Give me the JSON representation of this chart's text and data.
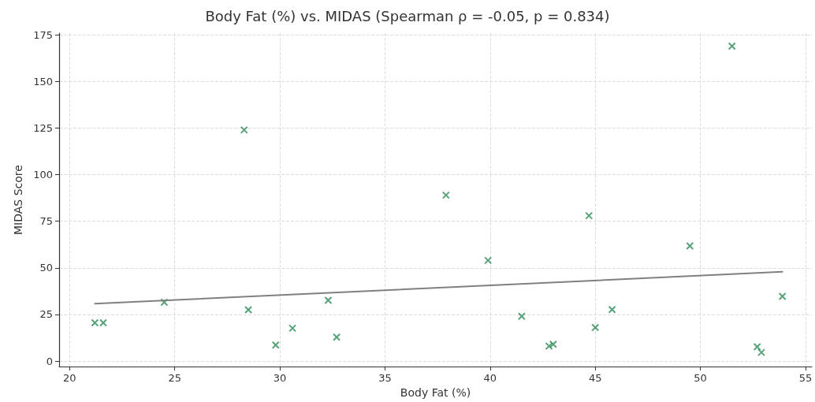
{
  "chart_data": {
    "type": "scatter",
    "title": "Body Fat (%) vs. MIDAS (Spearman ρ = -0.05, p = 0.834)",
    "xlabel": "Body Fat (%)",
    "ylabel": "MIDAS Score",
    "xlim": [
      19.5,
      55.3
    ],
    "xticks": [
      20,
      25,
      30,
      35,
      40,
      45,
      50,
      55
    ],
    "ylim": [
      -3,
      176
    ],
    "yticks": [
      0,
      25,
      50,
      75,
      100,
      125,
      150,
      175
    ],
    "grid": true,
    "series": [
      {
        "marker": "cross",
        "color": "#2e8b57",
        "x": [
          21.2,
          21.6,
          24.5,
          28.3,
          28.5,
          29.8,
          30.6,
          32.3,
          32.7,
          37.9,
          39.9,
          41.5,
          42.8,
          43.0,
          44.7,
          45.0,
          45.8,
          49.5,
          51.5,
          52.7,
          52.9,
          53.9
        ],
        "values": [
          20.5,
          20.5,
          31.5,
          124,
          27.5,
          8.6,
          17.6,
          32.6,
          12.8,
          89,
          54,
          24,
          8,
          9,
          78,
          18,
          27.6,
          61.8,
          169,
          7.6,
          4.6,
          34.7
        ]
      },
      {
        "type": "line",
        "color": "#808080",
        "line_style": "solid",
        "x": [
          21.2,
          53.9
        ],
        "values": [
          30.8,
          47.9
        ]
      }
    ]
  }
}
